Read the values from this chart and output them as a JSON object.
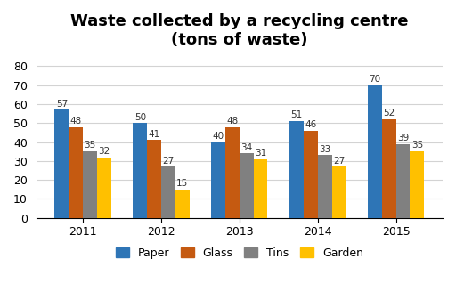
{
  "title": "Waste collected by a recycling centre\n(tons of waste)",
  "years": [
    "2011",
    "2012",
    "2013",
    "2014",
    "2015"
  ],
  "categories": [
    "Paper",
    "Glass",
    "Tins",
    "Garden"
  ],
  "values": {
    "Paper": [
      57,
      50,
      40,
      51,
      70
    ],
    "Glass": [
      48,
      41,
      48,
      46,
      52
    ],
    "Tins": [
      35,
      27,
      34,
      33,
      39
    ],
    "Garden": [
      32,
      15,
      31,
      27,
      35
    ]
  },
  "colors": {
    "Paper": "#2E75B6",
    "Glass": "#C55A11",
    "Tins": "#808080",
    "Garden": "#FFC000"
  },
  "ylim": [
    0,
    85
  ],
  "yticks": [
    0,
    10,
    20,
    30,
    40,
    50,
    60,
    70,
    80
  ],
  "bar_width": 0.18,
  "title_fontsize": 13,
  "label_fontsize": 7.5,
  "tick_fontsize": 9,
  "legend_fontsize": 9,
  "background_color": "#FFFFFF",
  "grid_color": "#D3D3D3"
}
